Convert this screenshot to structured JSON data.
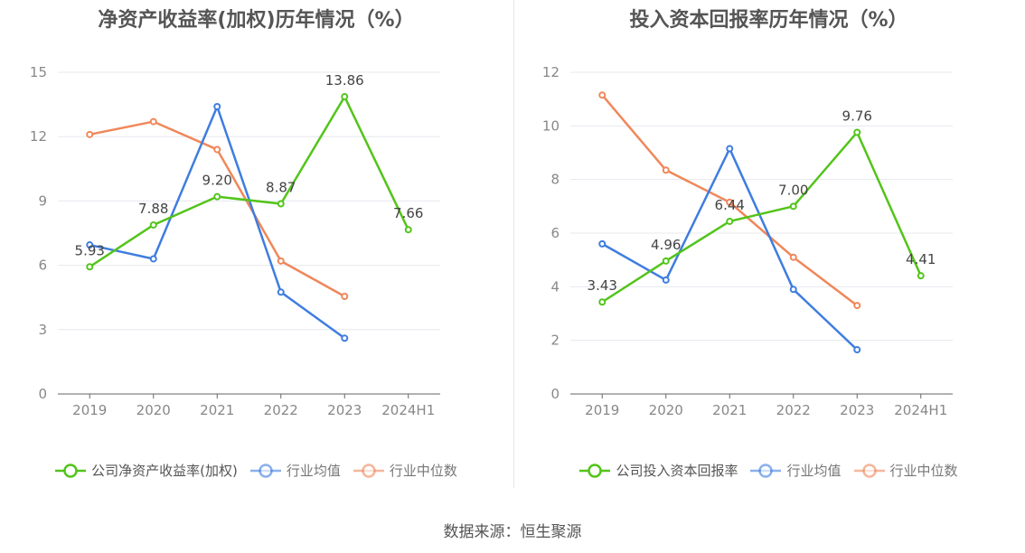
{
  "source": "数据来源：恒生聚源",
  "chart_data": [
    {
      "type": "line",
      "title": "净资产收益率(加权)历年情况（%）",
      "categories": [
        "2019",
        "2020",
        "2021",
        "2022",
        "2023",
        "2024H1"
      ],
      "ylim": [
        0,
        15
      ],
      "yticks": [
        0,
        3,
        6,
        9,
        12,
        15
      ],
      "grid": true,
      "legend_position": "bottom-center",
      "series": [
        {
          "name": "公司净资产收益率(加权)",
          "color": "#52c41a",
          "values": [
            5.93,
            7.88,
            9.2,
            8.87,
            13.86,
            7.66
          ],
          "labels": [
            "5.93",
            "7.88",
            "9.20",
            "8.87",
            "13.86",
            "7.66"
          ]
        },
        {
          "name": "行业均值",
          "color": "#3f7de0",
          "values": [
            6.95,
            6.3,
            13.4,
            4.75,
            2.6,
            null
          ]
        },
        {
          "name": "行业中位数",
          "color": "#f0875a",
          "values": [
            12.1,
            12.7,
            11.4,
            6.2,
            4.55,
            null
          ]
        }
      ]
    },
    {
      "type": "line",
      "title": "投入资本回报率历年情况（%）",
      "categories": [
        "2019",
        "2020",
        "2021",
        "2022",
        "2023",
        "2024H1"
      ],
      "ylim": [
        0,
        12
      ],
      "yticks": [
        0,
        2,
        4,
        6,
        8,
        10,
        12
      ],
      "grid": true,
      "legend_position": "bottom-center",
      "series": [
        {
          "name": "公司投入资本回报率",
          "color": "#52c41a",
          "values": [
            3.43,
            4.96,
            6.44,
            7.0,
            9.76,
            4.41
          ],
          "labels": [
            "3.43",
            "4.96",
            "6.44",
            "7.00",
            "9.76",
            "4.41"
          ]
        },
        {
          "name": "行业均值",
          "color": "#3f7de0",
          "values": [
            5.6,
            4.25,
            9.15,
            3.9,
            1.65,
            null
          ]
        },
        {
          "name": "行业中位数",
          "color": "#f0875a",
          "values": [
            11.15,
            8.35,
            7.15,
            5.1,
            3.3,
            null
          ]
        }
      ]
    }
  ]
}
